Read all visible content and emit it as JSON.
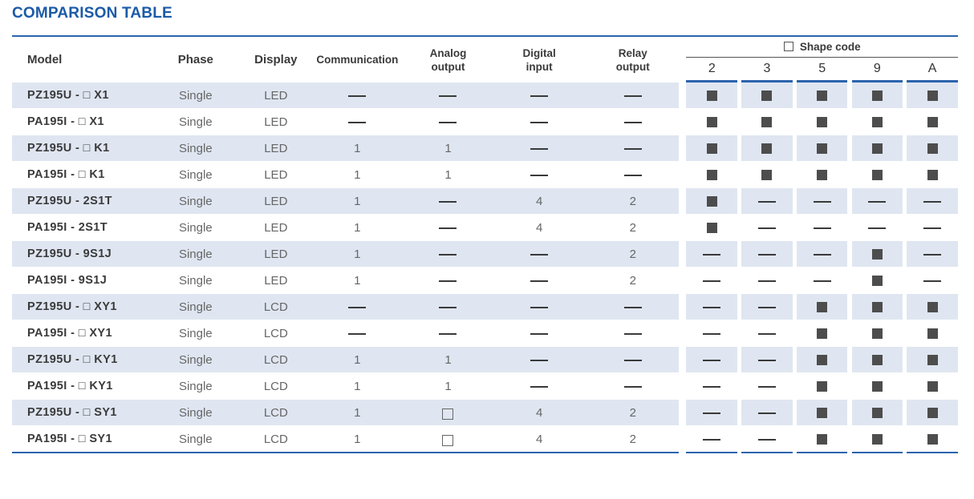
{
  "title": "COMPARISON TABLE",
  "headers": {
    "model": "Model",
    "phase": "Phase",
    "display": "Display",
    "communication": "Communication",
    "analog_line1": "Analog",
    "analog_line2": "output",
    "digital_line1": "Digital",
    "digital_line2": "input",
    "relay_line1": "Relay",
    "relay_line2": "output",
    "shape_code": "Shape code",
    "shape_codes": [
      "2",
      "3",
      "5",
      "9",
      "A"
    ]
  },
  "rows": [
    {
      "model": "PZ195U - □ X1",
      "phase": "Single",
      "display": "LED",
      "communication": "—",
      "analog": "—",
      "digital": "—",
      "relay": "—",
      "shapes": [
        "■",
        "■",
        "■",
        "■",
        "■"
      ]
    },
    {
      "model": "PA195I - □ X1",
      "phase": "Single",
      "display": "LED",
      "communication": "—",
      "analog": "—",
      "digital": "—",
      "relay": "—",
      "shapes": [
        "■",
        "■",
        "■",
        "■",
        "■"
      ]
    },
    {
      "model": "PZ195U - □ K1",
      "phase": "Single",
      "display": "LED",
      "communication": "1",
      "analog": "1",
      "digital": "—",
      "relay": "—",
      "shapes": [
        "■",
        "■",
        "■",
        "■",
        "■"
      ]
    },
    {
      "model": "PA195I - □ K1",
      "phase": "Single",
      "display": "LED",
      "communication": "1",
      "analog": "1",
      "digital": "—",
      "relay": "—",
      "shapes": [
        "■",
        "■",
        "■",
        "■",
        "■"
      ]
    },
    {
      "model": "PZ195U - 2S1T",
      "phase": "Single",
      "display": "LED",
      "communication": "1",
      "analog": "—",
      "digital": "4",
      "relay": "2",
      "shapes": [
        "■",
        "—",
        "—",
        "—",
        "—"
      ]
    },
    {
      "model": "PA195I - 2S1T",
      "phase": "Single",
      "display": "LED",
      "communication": "1",
      "analog": "—",
      "digital": "4",
      "relay": "2",
      "shapes": [
        "■",
        "—",
        "—",
        "—",
        "—"
      ]
    },
    {
      "model": "PZ195U - 9S1J",
      "phase": "Single",
      "display": "LED",
      "communication": "1",
      "analog": "—",
      "digital": "—",
      "relay": "2",
      "shapes": [
        "—",
        "—",
        "—",
        "■",
        "—"
      ]
    },
    {
      "model": "PA195I - 9S1J",
      "phase": "Single",
      "display": "LED",
      "communication": "1",
      "analog": "—",
      "digital": "—",
      "relay": "2",
      "shapes": [
        "—",
        "—",
        "—",
        "■",
        "—"
      ]
    },
    {
      "model": "PZ195U - □ XY1",
      "phase": "Single",
      "display": "LCD",
      "communication": "—",
      "analog": "—",
      "digital": "—",
      "relay": "—",
      "shapes": [
        "—",
        "—",
        "■",
        "■",
        "■"
      ]
    },
    {
      "model": "PA195I - □ XY1",
      "phase": "Single",
      "display": "LCD",
      "communication": "—",
      "analog": "—",
      "digital": "—",
      "relay": "—",
      "shapes": [
        "—",
        "—",
        "■",
        "■",
        "■"
      ]
    },
    {
      "model": "PZ195U - □ KY1",
      "phase": "Single",
      "display": "LCD",
      "communication": "1",
      "analog": "1",
      "digital": "—",
      "relay": "—",
      "shapes": [
        "—",
        "—",
        "■",
        "■",
        "■"
      ]
    },
    {
      "model": "PA195I - □ KY1",
      "phase": "Single",
      "display": "LCD",
      "communication": "1",
      "analog": "1",
      "digital": "—",
      "relay": "—",
      "shapes": [
        "—",
        "—",
        "■",
        "■",
        "■"
      ]
    },
    {
      "model": "PZ195U - □ SY1",
      "phase": "Single",
      "display": "LCD",
      "communication": "1",
      "analog": "□",
      "digital": "4",
      "relay": "2",
      "shapes": [
        "—",
        "—",
        "■",
        "■",
        "■"
      ]
    },
    {
      "model": "PA195I - □ SY1",
      "phase": "Single",
      "display": "LCD",
      "communication": "1",
      "analog": "□",
      "digital": "4",
      "relay": "2",
      "shapes": [
        "—",
        "—",
        "■",
        "■",
        "■"
      ]
    }
  ],
  "colors": {
    "accent": "#1b5aa7",
    "rule": "#2b64ae",
    "shaded_row": "#dfe6f1",
    "marker": "#4d4d4d"
  }
}
